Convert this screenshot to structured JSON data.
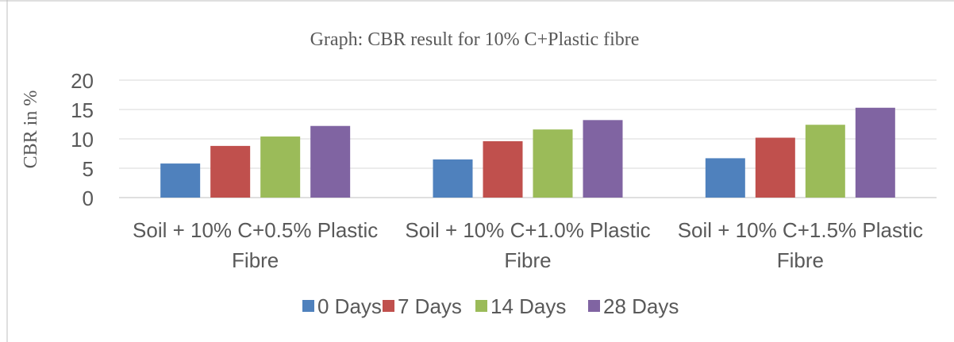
{
  "chart_data": {
    "type": "bar",
    "title": "Graph: CBR result for 10% C+Plastic fibre",
    "xlabel": "",
    "ylabel": "CBR in %",
    "ylim": [
      0,
      20
    ],
    "yticks": [
      0,
      5,
      10,
      15,
      20
    ],
    "grid": true,
    "legend_position": "bottom",
    "categories": [
      [
        "Soil + 10% C+0.5% Plastic",
        "Fibre"
      ],
      [
        "Soil + 10% C+1.0% Plastic",
        "Fibre"
      ],
      [
        "Soil + 10% C+1.5% Plastic",
        "Fibre"
      ]
    ],
    "series": [
      {
        "name": "0 Days",
        "color": "#4f81bd",
        "values": [
          5.8,
          6.5,
          6.7
        ]
      },
      {
        "name": "7 Days",
        "color": "#c0504d",
        "values": [
          8.8,
          9.6,
          10.2
        ]
      },
      {
        "name": "14 Days",
        "color": "#9bbb59",
        "values": [
          10.4,
          11.6,
          12.4
        ]
      },
      {
        "name": "28 Days",
        "color": "#8064a2",
        "values": [
          12.2,
          13.2,
          15.3
        ]
      }
    ]
  }
}
